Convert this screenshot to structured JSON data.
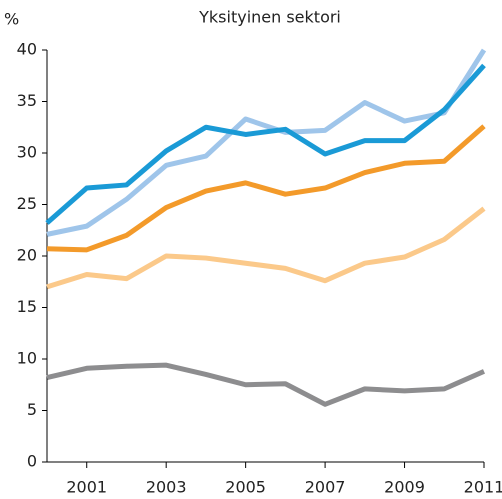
{
  "chart_data": {
    "type": "line",
    "title": "Yksityinen sektori",
    "y_label": "%",
    "x": [
      2000,
      2001,
      2002,
      2003,
      2004,
      2005,
      2006,
      2007,
      2008,
      2009,
      2010,
      2011
    ],
    "series": [
      {
        "color": "#8d8d8f",
        "values": [
          8.2,
          9.1,
          9.3,
          9.4,
          8.5,
          7.5,
          7.6,
          5.6,
          7.1,
          6.9,
          7.1,
          8.8
        ]
      },
      {
        "color": "#fbc98a",
        "values": [
          17.0,
          18.2,
          17.8,
          20.0,
          19.8,
          19.3,
          18.8,
          17.6,
          19.3,
          19.9,
          21.6,
          24.6
        ]
      },
      {
        "color": "#f39a2a",
        "values": [
          20.7,
          20.6,
          22.0,
          24.7,
          26.3,
          27.1,
          26.0,
          26.6,
          28.1,
          29.0,
          29.2,
          32.6
        ]
      },
      {
        "color": "#9fc5ea",
        "values": [
          22.1,
          22.9,
          25.5,
          28.8,
          29.7,
          33.3,
          32.0,
          32.2,
          34.9,
          33.1,
          33.9,
          40.0
        ]
      },
      {
        "color": "#1a9ad6",
        "values": [
          23.2,
          26.6,
          26.9,
          30.2,
          32.5,
          31.8,
          32.3,
          29.9,
          31.2,
          31.2,
          34.2,
          38.5
        ]
      }
    ],
    "xlim": [
      2000,
      2011
    ],
    "xticks": [
      2001,
      2003,
      2005,
      2007,
      2009,
      2011
    ],
    "ylim": [
      0,
      40
    ],
    "yticks": [
      0,
      5,
      10,
      15,
      20,
      25,
      30,
      35,
      40
    ],
    "grid": false
  }
}
